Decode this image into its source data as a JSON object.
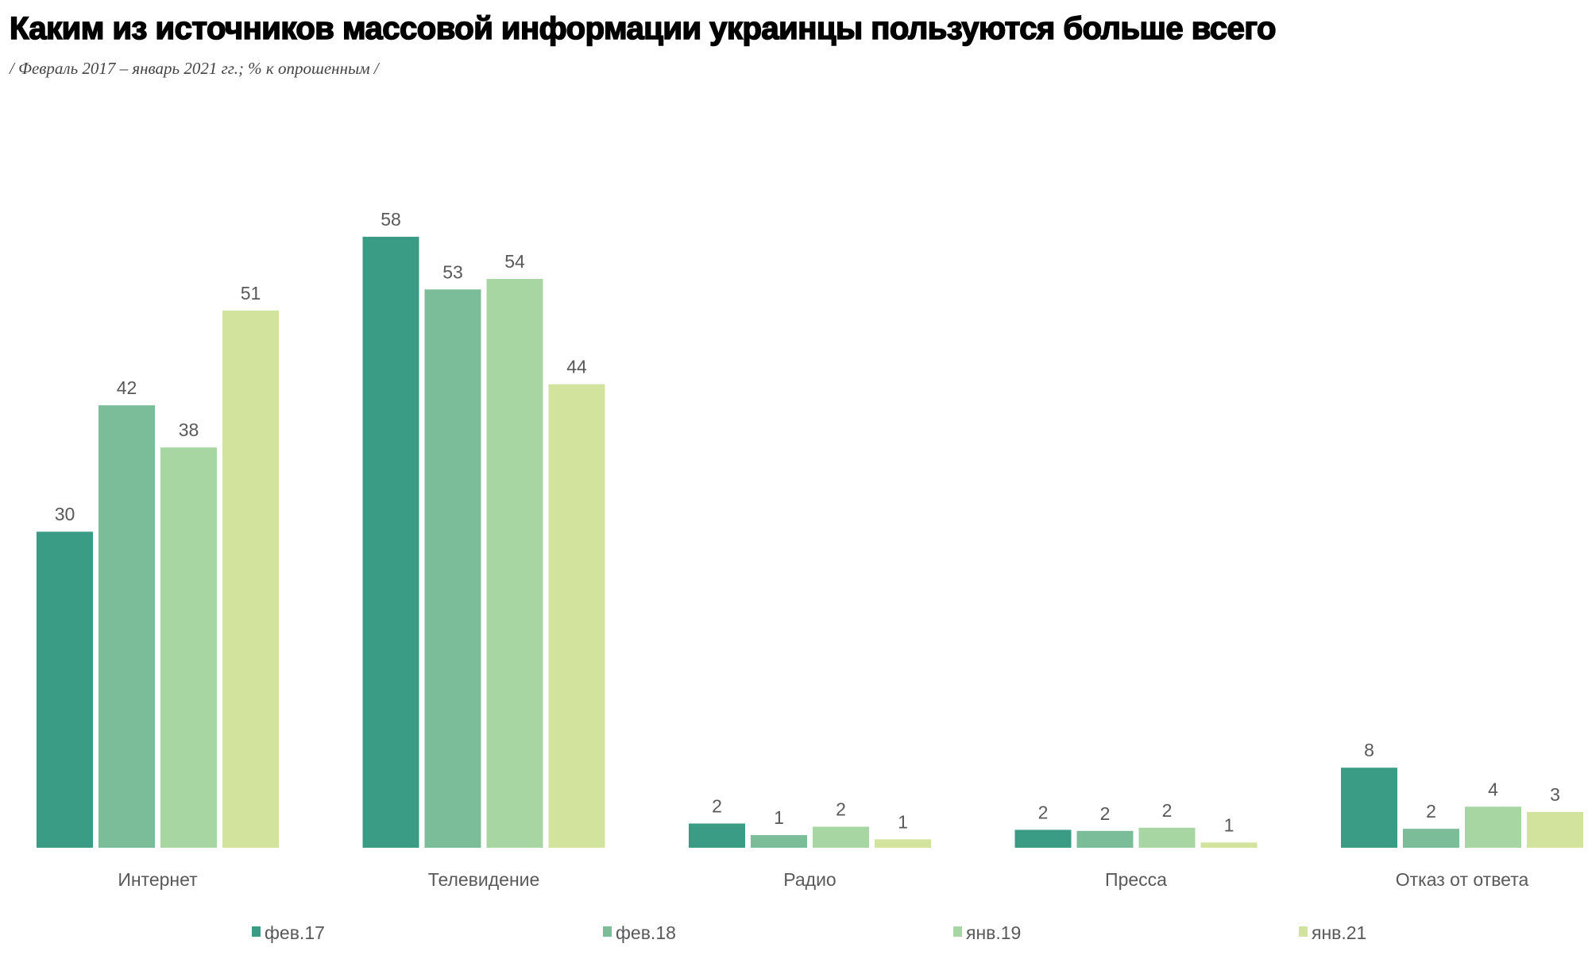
{
  "title": "Каким из источников массовой информации украинцы пользуются больше всего",
  "subtitle": "/ Февраль 2017 – январь 2021 гг.; % к опрошенным /",
  "chart_data": {
    "type": "bar",
    "categories": [
      "Интернет",
      "Телевидение",
      "Радио",
      "Пресса",
      "Отказ от ответа"
    ],
    "series": [
      {
        "name": "фев.17",
        "color": "#3a9c85",
        "values": [
          30,
          58,
          2,
          2,
          8
        ]
      },
      {
        "name": "фев.18",
        "color": "#7bbd98",
        "values": [
          42,
          53,
          1,
          2,
          2
        ]
      },
      {
        "name": "янв.19",
        "color": "#a8d6a3",
        "values": [
          38,
          54,
          2,
          2,
          4
        ]
      },
      {
        "name": "янв.21",
        "color": "#d2e39d",
        "values": [
          51,
          44,
          1,
          1,
          3
        ]
      }
    ],
    "bar_heights_approx": [
      [
        30,
        58,
        2.3,
        1.7,
        7.6
      ],
      [
        42,
        53,
        1.2,
        1.6,
        1.8
      ],
      [
        38,
        54,
        2,
        1.9,
        3.9
      ],
      [
        51,
        44,
        0.8,
        0.5,
        3.4
      ]
    ],
    "ylim": [
      0,
      60
    ],
    "grid": false,
    "legend": "bottom",
    "data_labels": true
  }
}
